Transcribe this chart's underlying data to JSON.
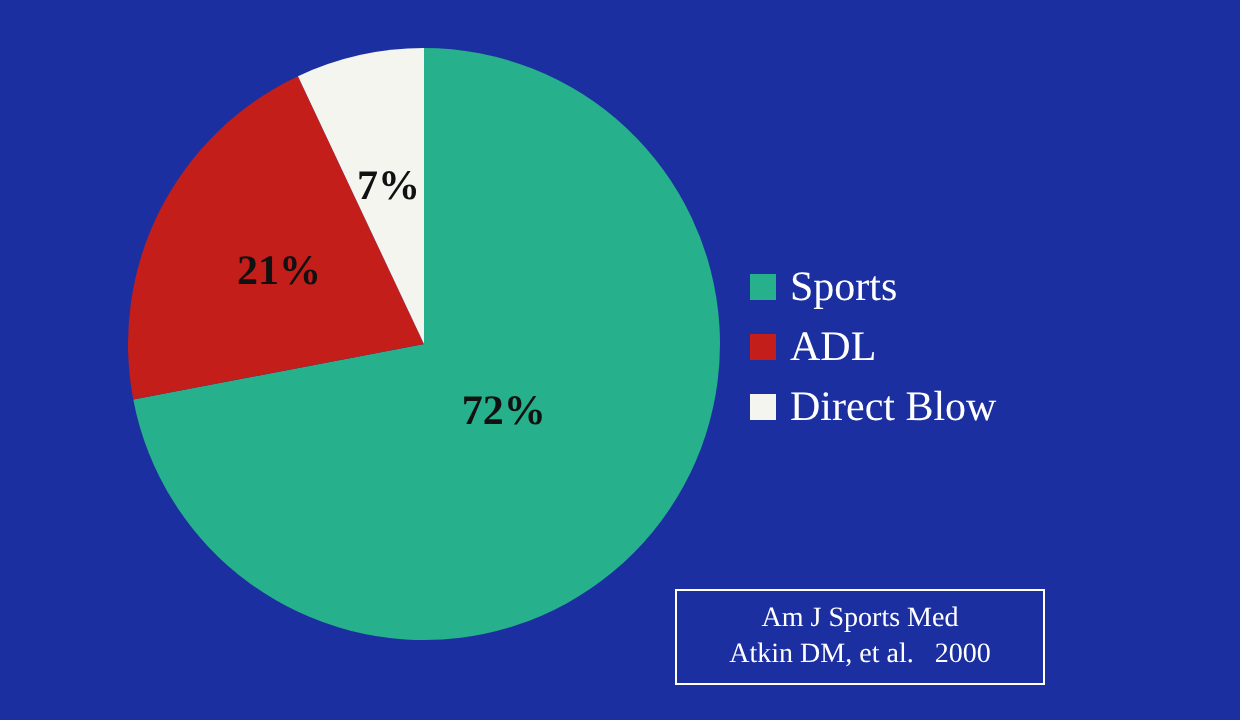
{
  "chart_data": {
    "type": "pie",
    "categories": [
      "Sports",
      "ADL",
      "Direct Blow"
    ],
    "values": [
      72,
      21,
      7
    ],
    "colors": [
      "#26b08c",
      "#c41e1a",
      "#f5f5f0"
    ],
    "value_labels": [
      "72%",
      "21%",
      "7%"
    ],
    "legend": "right",
    "annotations": [
      "Am J Sports Med\nAtkin DM, et al.   2000"
    ]
  }
}
